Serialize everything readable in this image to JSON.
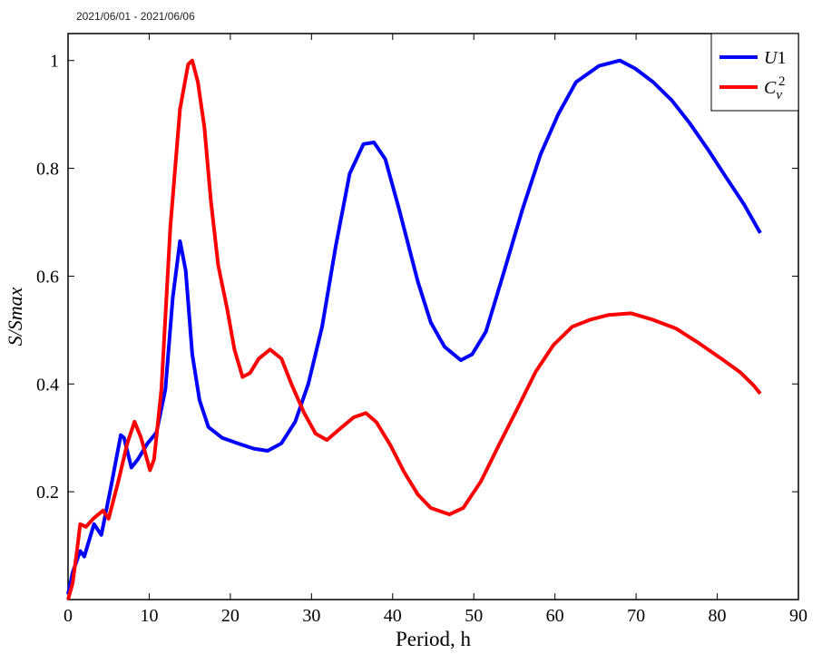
{
  "header": {
    "date_range": "2021/06/01 - 2021/06/06"
  },
  "chart_data": {
    "type": "line",
    "title": "2021/06/01 - 2021/06/06",
    "xlabel": "Period, h",
    "ylabel": "S/Smax",
    "xlim": [
      0,
      90
    ],
    "ylim": [
      0,
      1.05
    ],
    "xticks": [
      0,
      10,
      20,
      30,
      40,
      50,
      60,
      70,
      80,
      90
    ],
    "yticks": [
      0.2,
      0.4,
      0.6,
      0.8,
      1
    ],
    "ytick_labels": [
      "0.2",
      "0.4",
      "0.6",
      "0.8",
      "1"
    ],
    "grid": false,
    "legend_position": "top-right",
    "series": [
      {
        "name": "U1",
        "legend_main": "U",
        "legend_sub": "1",
        "color": "#0000ff",
        "x": [
          0,
          0.56,
          1.5,
          2,
          3.2,
          4.1,
          5.3,
          6.5,
          6.9,
          7.8,
          8.6,
          9.8,
          10.9,
          12,
          12.9,
          13.8,
          14.5,
          15.3,
          16.2,
          17.3,
          19,
          20.9,
          22.9,
          24.6,
          26.3,
          28,
          29.6,
          31.3,
          33,
          34.7,
          36.4,
          37.7,
          39.1,
          40.8,
          43.1,
          44.7,
          46.4,
          48.4,
          49.8,
          51.5,
          53.7,
          56,
          58.2,
          60.4,
          62.6,
          65.4,
          68,
          69.9,
          72.1,
          74.4,
          76.6,
          78.9,
          81.1,
          83.3,
          85.3
        ],
        "y": [
          0.01,
          0.05,
          0.09,
          0.08,
          0.14,
          0.12,
          0.21,
          0.305,
          0.3,
          0.245,
          0.26,
          0.29,
          0.31,
          0.39,
          0.56,
          0.665,
          0.61,
          0.455,
          0.37,
          0.32,
          0.3,
          0.29,
          0.28,
          0.276,
          0.29,
          0.33,
          0.4,
          0.506,
          0.657,
          0.79,
          0.845,
          0.848,
          0.817,
          0.724,
          0.59,
          0.514,
          0.469,
          0.444,
          0.455,
          0.497,
          0.607,
          0.724,
          0.825,
          0.9,
          0.96,
          0.99,
          1.0,
          0.985,
          0.96,
          0.926,
          0.884,
          0.834,
          0.783,
          0.733,
          0.68
        ]
      },
      {
        "name": "Cv^2",
        "legend_main": "C",
        "legend_sub": "v",
        "legend_sup": "2",
        "color": "#ff0000",
        "x": [
          0,
          0.56,
          1.1,
          1.5,
          2.2,
          3.1,
          4.3,
          5,
          6.2,
          7.3,
          8.2,
          9,
          10.1,
          10.6,
          11.5,
          12.6,
          13.8,
          14.8,
          15.3,
          16,
          16.8,
          17.6,
          18.5,
          19.6,
          20.5,
          21.5,
          22.4,
          23.5,
          24.9,
          26.3,
          27.6,
          29.1,
          30.5,
          31.9,
          33.6,
          35.2,
          36.7,
          38,
          39.7,
          41.4,
          43.1,
          44.7,
          47,
          48.7,
          50.9,
          53.1,
          55.4,
          57.6,
          59.8,
          62.1,
          64.3,
          66.6,
          69.4,
          72.1,
          74.9,
          77.7,
          80.5,
          82.8,
          84.5,
          85.3
        ],
        "y": [
          0,
          0.03,
          0.09,
          0.14,
          0.135,
          0.15,
          0.165,
          0.15,
          0.22,
          0.29,
          0.33,
          0.3,
          0.24,
          0.26,
          0.39,
          0.69,
          0.91,
          0.993,
          1.0,
          0.96,
          0.876,
          0.74,
          0.62,
          0.54,
          0.464,
          0.413,
          0.42,
          0.447,
          0.464,
          0.447,
          0.397,
          0.346,
          0.308,
          0.296,
          0.318,
          0.338,
          0.346,
          0.329,
          0.287,
          0.237,
          0.195,
          0.17,
          0.158,
          0.17,
          0.22,
          0.287,
          0.355,
          0.422,
          0.472,
          0.506,
          0.519,
          0.528,
          0.531,
          0.519,
          0.503,
          0.476,
          0.447,
          0.422,
          0.397,
          0.382
        ]
      }
    ]
  }
}
